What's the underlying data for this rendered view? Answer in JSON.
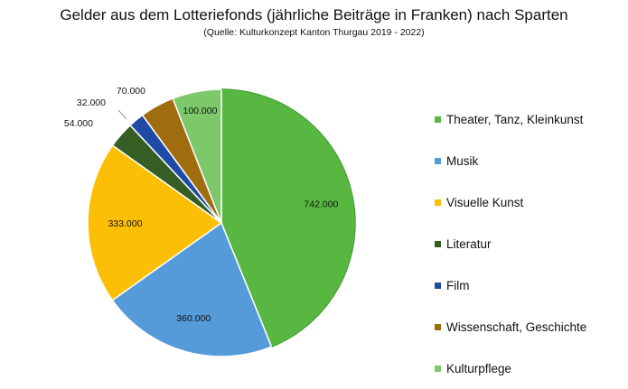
{
  "chart_data": {
    "type": "pie",
    "title": "Gelder aus dem Lotteriefonds (jährliche Beiträge in Franken) nach Sparten",
    "subtitle": "(Quelle: Kulturkonzept Kanton Thurgau 2019 - 2022)",
    "legend_position": "right",
    "slices": [
      {
        "label": "Theater, Tanz, Kleinkunst",
        "value": 742000,
        "value_label": "742.000",
        "color": "#57b741"
      },
      {
        "label": "Musik",
        "value": 360000,
        "value_label": "360.000",
        "color": "#559bd9"
      },
      {
        "label": "Visuelle Kunst",
        "value": 333000,
        "value_label": "333.000",
        "color": "#fdbf05"
      },
      {
        "label": "Literatur",
        "value": 54000,
        "value_label": "54.000",
        "color": "#345e23"
      },
      {
        "label": "Film",
        "value": 32000,
        "value_label": "32.000",
        "color": "#1f4aa6"
      },
      {
        "label": "Wissenschaft, Geschichte",
        "value": 70000,
        "value_label": "70.000",
        "color": "#a06c10"
      },
      {
        "label": "Kulturpflege",
        "value": 100000,
        "value_label": "100.000",
        "color": "#7cc86a"
      }
    ]
  }
}
